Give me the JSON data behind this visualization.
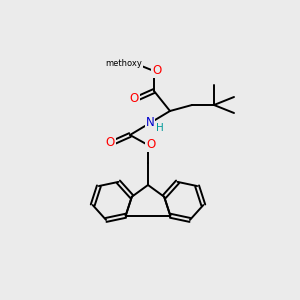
{
  "background_color": "#ebebeb",
  "atom_colors": {
    "C": "#000000",
    "O": "#ff0000",
    "N": "#0000cc",
    "H": "#009999"
  },
  "figsize": [
    3.0,
    3.0
  ],
  "dpi": 100,
  "lw": 1.4
}
